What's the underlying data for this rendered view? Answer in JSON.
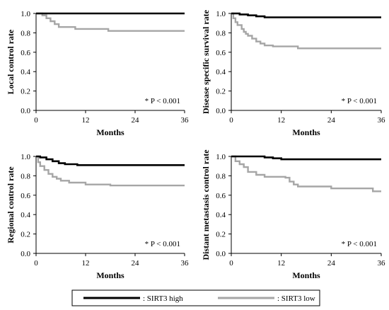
{
  "chart_data": [
    {
      "type": "line",
      "title": "",
      "xlabel": "Months",
      "ylabel": "Local control rate",
      "xlim": [
        0,
        36
      ],
      "ylim": [
        0,
        1.0
      ],
      "x_ticks": [
        "0",
        "12",
        "24",
        "36"
      ],
      "y_ticks": [
        "0.0",
        "0.2",
        "0.4",
        "0.6",
        "0.8",
        "1.0"
      ],
      "annotation": "* P < 0.001",
      "grid": false,
      "series": [
        {
          "name": "SIRT3 high",
          "color": "#000000",
          "x": [
            0,
            36
          ],
          "y": [
            1.0,
            1.0
          ]
        },
        {
          "name": "SIRT3 low",
          "color": "#a6a6a6",
          "x": [
            0,
            1.5,
            2.5,
            3.5,
            4.5,
            5.5,
            9.5,
            17.5,
            36
          ],
          "y": [
            1.0,
            0.98,
            0.95,
            0.92,
            0.89,
            0.86,
            0.84,
            0.82,
            0.82
          ]
        }
      ]
    },
    {
      "type": "line",
      "title": "",
      "xlabel": "Months",
      "ylabel": "Disease specific survival rate",
      "xlim": [
        0,
        36
      ],
      "ylim": [
        0,
        1.0
      ],
      "x_ticks": [
        "0",
        "12",
        "24",
        "36"
      ],
      "y_ticks": [
        "0.0",
        "0.2",
        "0.4",
        "0.6",
        "0.8",
        "1.0"
      ],
      "annotation": "* P < 0.001",
      "grid": false,
      "series": [
        {
          "name": "SIRT3 high",
          "color": "#000000",
          "x": [
            0,
            2,
            4,
            6,
            8,
            36
          ],
          "y": [
            1.0,
            0.99,
            0.98,
            0.97,
            0.96,
            0.96
          ]
        },
        {
          "name": "SIRT3 low",
          "color": "#a6a6a6",
          "x": [
            0,
            0.5,
            1,
            1.5,
            2.5,
            3,
            3.5,
            4,
            5,
            6,
            7,
            8,
            10,
            16,
            36
          ],
          "y": [
            1.0,
            0.95,
            0.91,
            0.88,
            0.84,
            0.81,
            0.79,
            0.77,
            0.74,
            0.71,
            0.69,
            0.67,
            0.66,
            0.64,
            0.64
          ]
        }
      ]
    },
    {
      "type": "line",
      "title": "",
      "xlabel": "Months",
      "ylabel": "Regional control rate",
      "xlim": [
        0,
        36
      ],
      "ylim": [
        0,
        1.0
      ],
      "x_ticks": [
        "0",
        "12",
        "24",
        "36"
      ],
      "y_ticks": [
        "0.0",
        "0.2",
        "0.4",
        "0.6",
        "0.8",
        "1.0"
      ],
      "annotation": "* P < 0.001",
      "grid": false,
      "series": [
        {
          "name": "SIRT3 high",
          "color": "#000000",
          "x": [
            0,
            1,
            2.5,
            4,
            5.5,
            7,
            10,
            36
          ],
          "y": [
            1.0,
            0.99,
            0.97,
            0.95,
            0.93,
            0.92,
            0.91,
            0.91
          ]
        },
        {
          "name": "SIRT3 low",
          "color": "#a6a6a6",
          "x": [
            0,
            0.5,
            1,
            2,
            3,
            4,
            5,
            6,
            8,
            12,
            18,
            36
          ],
          "y": [
            1.0,
            0.94,
            0.9,
            0.86,
            0.82,
            0.79,
            0.77,
            0.75,
            0.73,
            0.71,
            0.7,
            0.7
          ]
        }
      ]
    },
    {
      "type": "line",
      "title": "",
      "xlabel": "Months",
      "ylabel": "Distant metastasis control rate",
      "xlim": [
        0,
        36
      ],
      "ylim": [
        0,
        1.0
      ],
      "x_ticks": [
        "0",
        "12",
        "24",
        "36"
      ],
      "y_ticks": [
        "0.0",
        "0.2",
        "0.4",
        "0.6",
        "0.8",
        "1.0"
      ],
      "annotation": "* P < 0.001",
      "grid": false,
      "series": [
        {
          "name": "SIRT3 high",
          "color": "#000000",
          "x": [
            0,
            8,
            10,
            12,
            36
          ],
          "y": [
            1.0,
            0.99,
            0.98,
            0.97,
            0.97
          ]
        },
        {
          "name": "SIRT3 low",
          "color": "#a6a6a6",
          "x": [
            0,
            1,
            2,
            3,
            4,
            6,
            8,
            13,
            14,
            15,
            16,
            24,
            34,
            36
          ],
          "y": [
            1.0,
            0.95,
            0.92,
            0.89,
            0.84,
            0.81,
            0.79,
            0.78,
            0.74,
            0.71,
            0.69,
            0.67,
            0.64,
            0.64
          ]
        }
      ]
    }
  ],
  "legend": {
    "placement": "bottom",
    "entries": [
      {
        "label": ": SIRT3 high",
        "color": "#000000"
      },
      {
        "label": ": SIRT3 low",
        "color": "#a6a6a6"
      }
    ]
  }
}
